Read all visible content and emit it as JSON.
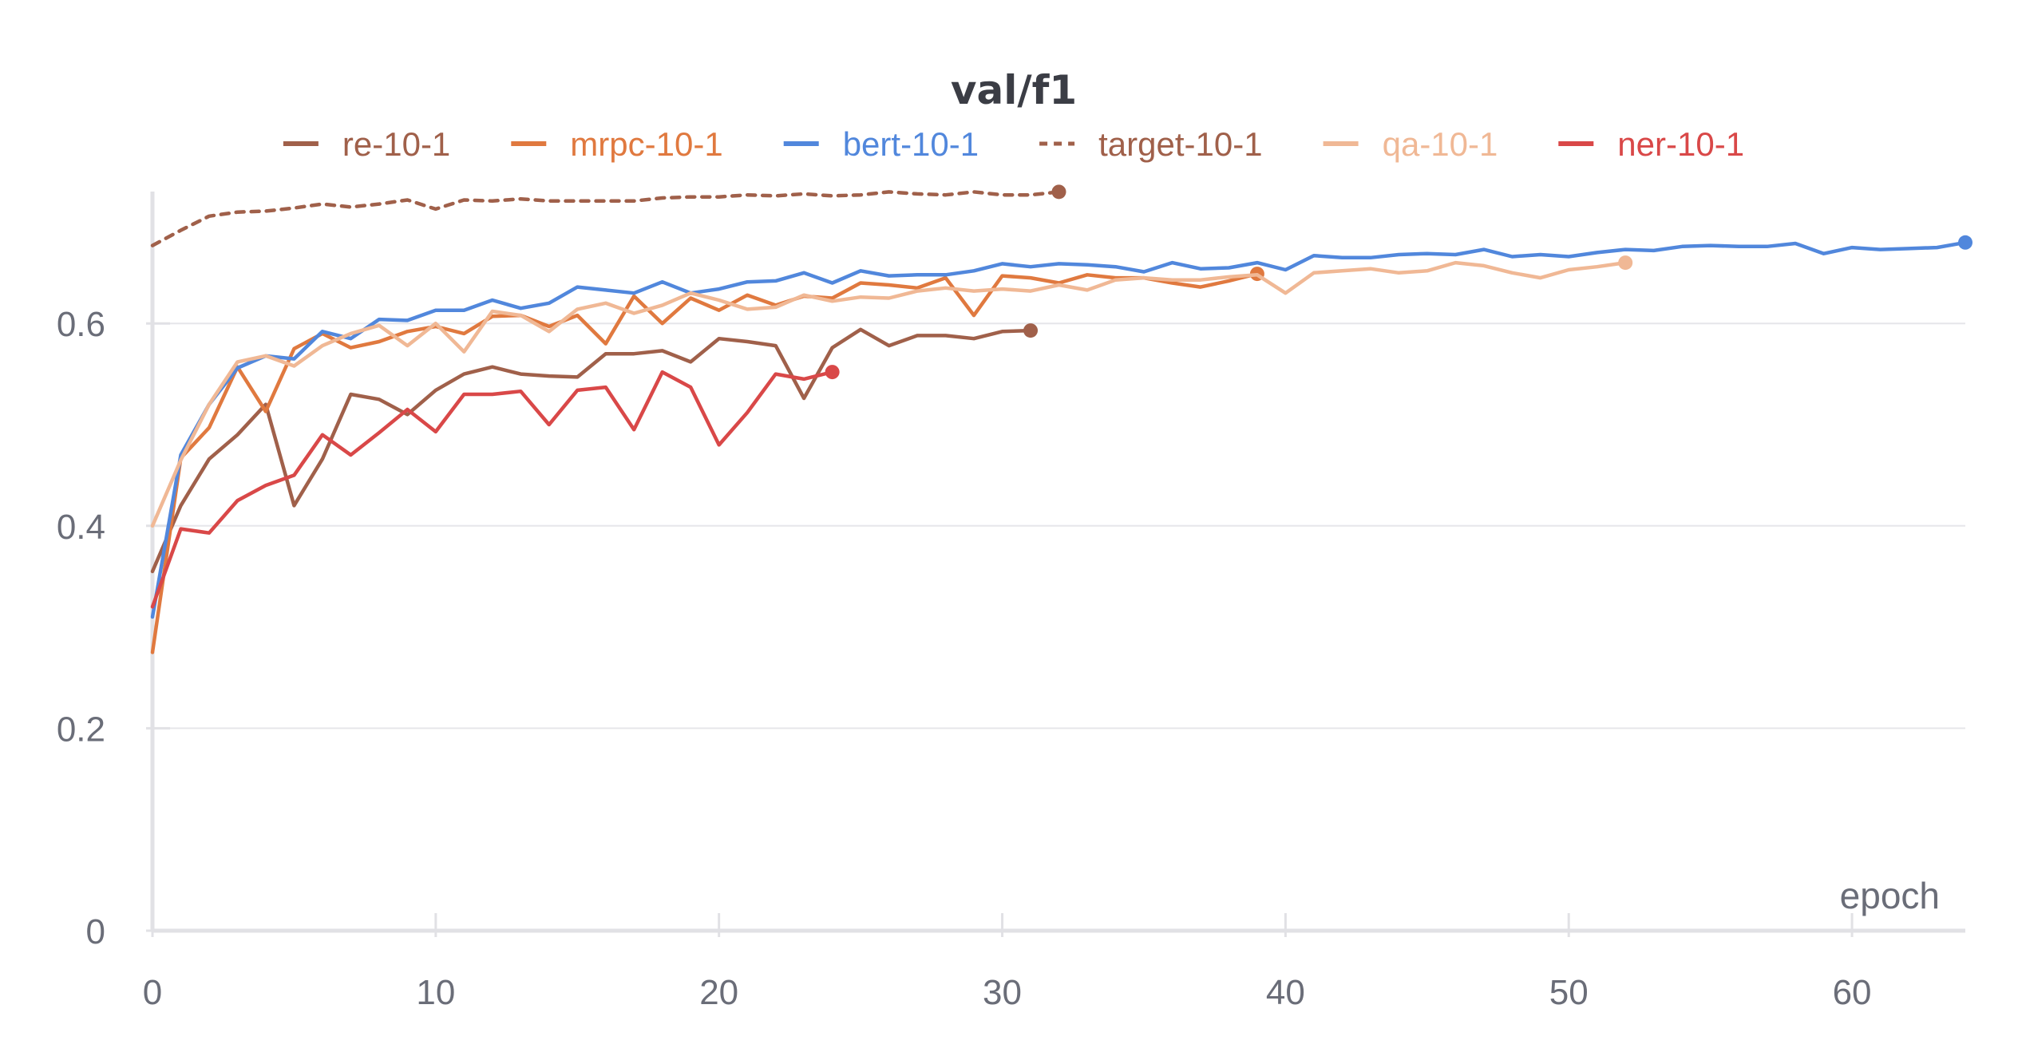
{
  "chart_data": {
    "type": "line",
    "title": "val/f1",
    "xlabel": "epoch",
    "ylabel": "",
    "xlim": [
      0,
      64
    ],
    "ylim": [
      0,
      0.73
    ],
    "x_ticks": [
      0,
      10,
      20,
      30,
      40,
      50,
      60
    ],
    "y_ticks": [
      0,
      0.2,
      0.4,
      0.6
    ],
    "x_tick_labels": [
      "0",
      "10",
      "20",
      "30",
      "40",
      "50",
      "60"
    ],
    "y_tick_labels": [
      "0",
      "0.2",
      "0.4",
      "0.6"
    ],
    "grid": "horizontal",
    "legend_position": "top",
    "series": [
      {
        "name": "re-10-1",
        "color": "#a0604a",
        "dashed": false,
        "values": [
          0.355,
          0.42,
          0.466,
          0.49,
          0.52,
          0.42,
          0.466,
          0.53,
          0.525,
          0.51,
          0.534,
          0.55,
          0.557,
          0.55,
          0.548,
          0.547,
          0.57,
          0.57,
          0.573,
          0.562,
          0.585,
          0.582,
          0.578,
          0.526,
          0.576,
          0.594,
          0.578,
          0.588,
          0.588,
          0.585,
          0.592,
          0.593
        ]
      },
      {
        "name": "mrpc-10-1",
        "color": "#e0793f",
        "dashed": false,
        "values": [
          0.275,
          0.467,
          0.497,
          0.557,
          0.513,
          0.575,
          0.59,
          0.576,
          0.582,
          0.592,
          0.597,
          0.59,
          0.607,
          0.608,
          0.597,
          0.608,
          0.58,
          0.627,
          0.6,
          0.625,
          0.613,
          0.628,
          0.618,
          0.627,
          0.625,
          0.64,
          0.638,
          0.635,
          0.645,
          0.608,
          0.647,
          0.645,
          0.64,
          0.648,
          0.645,
          0.645,
          0.64,
          0.636,
          0.642,
          0.649
        ]
      },
      {
        "name": "bert-10-1",
        "color": "#5187dc",
        "dashed": false,
        "values": [
          0.31,
          0.47,
          0.52,
          0.556,
          0.568,
          0.565,
          0.592,
          0.585,
          0.604,
          0.603,
          0.613,
          0.613,
          0.623,
          0.615,
          0.62,
          0.636,
          0.633,
          0.63,
          0.641,
          0.63,
          0.634,
          0.641,
          0.642,
          0.65,
          0.64,
          0.652,
          0.647,
          0.648,
          0.648,
          0.652,
          0.659,
          0.656,
          0.659,
          0.658,
          0.656,
          0.651,
          0.66,
          0.654,
          0.655,
          0.66,
          0.653,
          0.667,
          0.665,
          0.665,
          0.668,
          0.669,
          0.668,
          0.673,
          0.666,
          0.668,
          0.666,
          0.67,
          0.673,
          0.672,
          0.676,
          0.677,
          0.676,
          0.676,
          0.679,
          0.669,
          0.675,
          0.673,
          0.674,
          0.675,
          0.68
        ]
      },
      {
        "name": "target-10-1",
        "color": "#a0604a",
        "dashed": true,
        "values": [
          0.677,
          0.692,
          0.706,
          0.71,
          0.711,
          0.714,
          0.718,
          0.715,
          0.718,
          0.722,
          0.713,
          0.722,
          0.721,
          0.723,
          0.721,
          0.721,
          0.721,
          0.721,
          0.724,
          0.725,
          0.725,
          0.727,
          0.726,
          0.728,
          0.726,
          0.727,
          0.73,
          0.728,
          0.727,
          0.73,
          0.727,
          0.727,
          0.73
        ]
      },
      {
        "name": "qa-10-1",
        "color": "#f0b895",
        "dashed": false,
        "values": [
          0.4,
          0.465,
          0.52,
          0.562,
          0.568,
          0.558,
          0.578,
          0.59,
          0.598,
          0.578,
          0.6,
          0.572,
          0.612,
          0.608,
          0.592,
          0.614,
          0.62,
          0.61,
          0.618,
          0.63,
          0.623,
          0.614,
          0.616,
          0.628,
          0.622,
          0.626,
          0.625,
          0.632,
          0.635,
          0.632,
          0.634,
          0.632,
          0.638,
          0.633,
          0.643,
          0.645,
          0.643,
          0.643,
          0.646,
          0.648,
          0.63,
          0.65,
          0.652,
          0.654,
          0.65,
          0.652,
          0.66,
          0.657,
          0.65,
          0.645,
          0.653,
          0.656,
          0.66
        ]
      },
      {
        "name": "ner-10-1",
        "color": "#d94848",
        "dashed": false,
        "values": [
          0.32,
          0.397,
          0.393,
          0.425,
          0.44,
          0.45,
          0.49,
          0.47,
          0.492,
          0.515,
          0.493,
          0.53,
          0.53,
          0.533,
          0.5,
          0.534,
          0.537,
          0.495,
          0.552,
          0.537,
          0.48,
          0.512,
          0.55,
          0.545,
          0.552
        ]
      }
    ]
  }
}
